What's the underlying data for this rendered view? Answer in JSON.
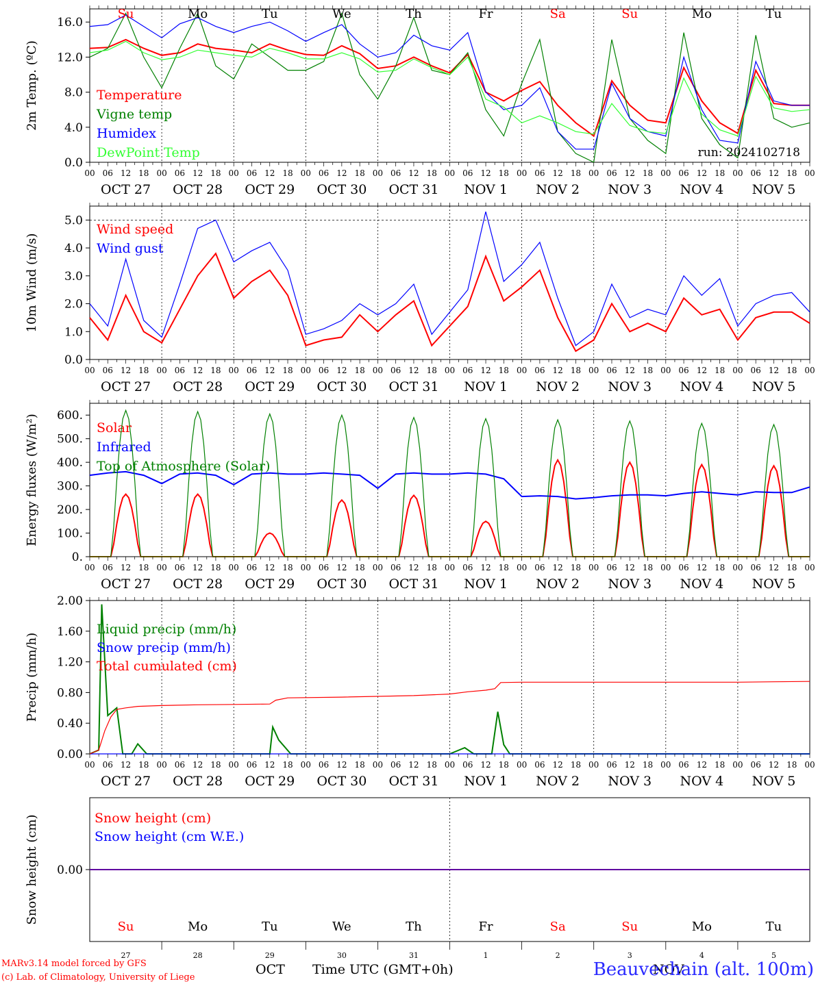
{
  "chart_data": [
    {
      "type": "line",
      "ylabel": "2m Temp. (ºC)",
      "ylim": [
        0,
        17.5
      ],
      "yticks": [
        "0.0",
        "4.0",
        "8.0",
        "12.0",
        "16.0"
      ],
      "run_label": "run: 2024102718",
      "day_labels": [
        "Su",
        "Mo",
        "Tu",
        "We",
        "Th",
        "Fr",
        "Sa",
        "Su",
        "Mo",
        "Tu"
      ],
      "x_hours": [
        0,
        6,
        12,
        18,
        24,
        30,
        36,
        42,
        48,
        54,
        60,
        66,
        72,
        78,
        84,
        90,
        96,
        102,
        108,
        114,
        120,
        126,
        132,
        138,
        144,
        150,
        156,
        162,
        168,
        174,
        180,
        186,
        192,
        198,
        204,
        210,
        216,
        222,
        228,
        234,
        240
      ],
      "series": [
        {
          "name": "Temperature",
          "color": "#ff0000",
          "values": [
            13.0,
            13.1,
            14.0,
            13.0,
            12.2,
            12.5,
            13.5,
            13.0,
            12.8,
            12.5,
            13.5,
            12.8,
            12.3,
            12.2,
            13.3,
            12.4,
            10.7,
            11.0,
            12.0,
            11.0,
            10.2,
            12.3,
            8.0,
            7.0,
            8.2,
            9.2,
            6.5,
            4.5,
            3.0,
            9.3,
            6.5,
            4.8,
            4.5,
            10.8,
            7.0,
            4.5,
            3.3,
            10.5,
            6.7,
            6.5,
            6.5
          ]
        },
        {
          "name": "Vigne temp",
          "color": "#008000",
          "values": [
            12.0,
            13.0,
            17.0,
            12.0,
            8.5,
            13.0,
            17.0,
            11.0,
            9.5,
            13.5,
            12.0,
            10.5,
            10.5,
            11.5,
            17.0,
            10.0,
            7.2,
            11.0,
            16.5,
            10.5,
            10.0,
            12.5,
            6.0,
            3.0,
            9.0,
            14.0,
            3.5,
            1.0,
            0.0,
            14.0,
            5.0,
            2.5,
            1.0,
            14.8,
            5.0,
            2.0,
            0.5,
            14.5,
            5.0,
            4.0,
            4.5
          ]
        },
        {
          "name": "Humidex",
          "color": "#0000ff",
          "values": [
            15.5,
            15.7,
            16.8,
            15.5,
            14.2,
            15.8,
            16.5,
            15.5,
            14.8,
            15.5,
            16.0,
            15.0,
            13.8,
            14.8,
            15.7,
            13.5,
            12.0,
            12.5,
            14.5,
            13.3,
            12.8,
            14.8,
            8.0,
            6.0,
            6.5,
            8.5,
            3.5,
            1.5,
            1.5,
            9.0,
            5.0,
            3.5,
            3.0,
            12.0,
            6.0,
            2.5,
            2.2,
            11.5,
            7.0,
            6.5,
            6.5
          ]
        },
        {
          "name": "DewPoint Temp",
          "color": "#33ff33",
          "values": [
            12.5,
            12.8,
            13.8,
            12.5,
            11.7,
            12.0,
            12.8,
            12.5,
            12.2,
            12.0,
            13.0,
            12.5,
            11.8,
            11.8,
            12.5,
            11.8,
            10.3,
            10.5,
            11.8,
            10.8,
            10.0,
            12.0,
            7.2,
            6.3,
            4.5,
            5.3,
            4.5,
            3.5,
            3.2,
            6.7,
            4.2,
            3.5,
            3.3,
            9.6,
            5.5,
            3.7,
            3.0,
            9.8,
            6.2,
            5.8,
            6.0
          ]
        }
      ]
    },
    {
      "type": "line",
      "ylabel": "10m Wind (m/s)",
      "ylim": [
        0,
        5.5
      ],
      "yticks": [
        "0.0",
        "1.0",
        "2.0",
        "3.0",
        "4.0",
        "5.0"
      ],
      "x_hours": [
        0,
        6,
        12,
        18,
        24,
        30,
        36,
        42,
        48,
        54,
        60,
        66,
        72,
        78,
        84,
        90,
        96,
        102,
        108,
        114,
        120,
        126,
        132,
        138,
        144,
        150,
        156,
        162,
        168,
        174,
        180,
        186,
        192,
        198,
        204,
        210,
        216,
        222,
        228,
        234,
        240
      ],
      "series": [
        {
          "name": "Wind speed",
          "color": "#ff0000",
          "values": [
            1.5,
            0.7,
            2.3,
            1.0,
            0.6,
            1.8,
            3.0,
            3.8,
            2.2,
            2.8,
            3.2,
            2.3,
            0.5,
            0.7,
            0.8,
            1.6,
            1.0,
            1.6,
            2.1,
            0.5,
            1.2,
            1.9,
            3.7,
            2.1,
            2.6,
            3.2,
            1.5,
            0.3,
            0.7,
            2.0,
            1.0,
            1.3,
            1.0,
            2.2,
            1.6,
            1.8,
            0.7,
            1.5,
            1.7,
            1.7,
            1.3
          ]
        },
        {
          "name": "Wind gust",
          "color": "#0000ff",
          "values": [
            2.0,
            1.2,
            3.6,
            1.4,
            0.8,
            2.7,
            4.7,
            5.0,
            3.5,
            3.9,
            4.2,
            3.2,
            0.9,
            1.1,
            1.4,
            2.0,
            1.6,
            2.0,
            2.7,
            0.9,
            1.7,
            2.5,
            5.3,
            2.8,
            3.4,
            4.2,
            2.2,
            0.5,
            1.0,
            2.7,
            1.5,
            1.8,
            1.6,
            3.0,
            2.3,
            2.9,
            1.2,
            2.0,
            2.3,
            2.4,
            1.7
          ]
        }
      ]
    },
    {
      "type": "line",
      "ylabel": "Energy fluxes (W/m²)",
      "ylim": [
        0,
        650
      ],
      "yticks": [
        "0.",
        "100.",
        "200.",
        "300.",
        "400.",
        "500.",
        "600."
      ],
      "x_hours": [
        0,
        6,
        12,
        18,
        24,
        30,
        36,
        42,
        48,
        54,
        60,
        66,
        72,
        78,
        84,
        90,
        96,
        102,
        108,
        114,
        120,
        126,
        132,
        138,
        144,
        150,
        156,
        162,
        168,
        174,
        180,
        186,
        192,
        198,
        204,
        210,
        216,
        222,
        228,
        234,
        240
      ],
      "series": [
        {
          "name": "Solar",
          "color": "#ff0000",
          "peaks": [
            265,
            265,
            100,
            240,
            260,
            150,
            410,
            400,
            390,
            385
          ]
        },
        {
          "name": "Infrared",
          "color": "#0000ff",
          "values": [
            345,
            355,
            360,
            345,
            310,
            350,
            355,
            345,
            305,
            350,
            355,
            350,
            350,
            355,
            350,
            345,
            290,
            350,
            355,
            350,
            350,
            355,
            350,
            330,
            255,
            258,
            255,
            245,
            250,
            258,
            262,
            262,
            258,
            268,
            275,
            268,
            262,
            275,
            272,
            272,
            295
          ]
        },
        {
          "name": "Top of Atmosphere (Solar)",
          "color": "#008000",
          "peaks": [
            620,
            615,
            605,
            600,
            590,
            585,
            580,
            575,
            565,
            560
          ]
        }
      ]
    },
    {
      "type": "line",
      "ylabel": "Precip (mm/h)",
      "ylim": [
        0,
        2.0
      ],
      "yticks": [
        "0.00",
        "0.40",
        "0.80",
        "1.20",
        "1.60",
        "2.00"
      ],
      "series": [
        {
          "name": "Liquid precip (mm/h)",
          "color": "#008000",
          "points": [
            [
              0,
              0.0
            ],
            [
              3,
              0.05
            ],
            [
              4,
              1.95
            ],
            [
              6,
              0.5
            ],
            [
              9,
              0.6
            ],
            [
              11,
              0.0
            ],
            [
              14,
              0.0
            ],
            [
              16,
              0.13
            ],
            [
              19,
              0.0
            ],
            [
              24,
              0.0
            ],
            [
              60,
              0.0
            ],
            [
              61,
              0.35
            ],
            [
              63,
              0.18
            ],
            [
              67,
              0.0
            ],
            [
              120,
              0.0
            ],
            [
              125,
              0.08
            ],
            [
              128,
              0.0
            ],
            [
              134,
              0.0
            ],
            [
              136,
              0.55
            ],
            [
              138,
              0.12
            ],
            [
              140,
              0.0
            ],
            [
              240,
              0.0
            ]
          ]
        },
        {
          "name": "Snow precip (mm/h)",
          "color": "#0000ff",
          "points": [
            [
              0,
              0.0
            ],
            [
              240,
              0.0
            ]
          ]
        },
        {
          "name": "Total cumulated (cm)",
          "color": "#ff0000",
          "points": [
            [
              0,
              0.0
            ],
            [
              3,
              0.05
            ],
            [
              5,
              0.3
            ],
            [
              7,
              0.48
            ],
            [
              9,
              0.58
            ],
            [
              12,
              0.6
            ],
            [
              16,
              0.62
            ],
            [
              24,
              0.63
            ],
            [
              36,
              0.64
            ],
            [
              48,
              0.645
            ],
            [
              60,
              0.65
            ],
            [
              62,
              0.7
            ],
            [
              66,
              0.73
            ],
            [
              84,
              0.74
            ],
            [
              108,
              0.76
            ],
            [
              120,
              0.78
            ],
            [
              126,
              0.81
            ],
            [
              132,
              0.83
            ],
            [
              135,
              0.85
            ],
            [
              137,
              0.93
            ],
            [
              144,
              0.935
            ],
            [
              216,
              0.935
            ],
            [
              228,
              0.94
            ],
            [
              240,
              0.945
            ]
          ]
        }
      ]
    },
    {
      "type": "line",
      "ylabel": "Snow height (cm)",
      "ylim": [
        -1,
        1
      ],
      "yticks": [
        "0.00"
      ],
      "series": [
        {
          "name": "Snow height (cm)",
          "color": "#ff0000",
          "points": [
            [
              0,
              0
            ],
            [
              240,
              0
            ]
          ]
        },
        {
          "name": "Snow height (cm W.E.)",
          "color": "#0000ff",
          "points": [
            [
              0,
              0
            ],
            [
              240,
              0
            ]
          ]
        }
      ],
      "day_labels": [
        "Su",
        "Mo",
        "Tu",
        "We",
        "Th",
        "Fr",
        "Sa",
        "Su",
        "Mo",
        "Tu"
      ],
      "day_numbers": [
        "27",
        "28",
        "29",
        "30",
        "31",
        "1",
        "2",
        "3",
        "4",
        "5"
      ]
    }
  ],
  "axis": {
    "hour_ticks": [
      "00",
      "06",
      "12",
      "18"
    ],
    "end_tick": "00",
    "date_labels": [
      "OCT 27",
      "OCT 28",
      "OCT 29",
      "OCT 30",
      "OCT 31",
      "NOV  1",
      "NOV  2",
      "NOV  3",
      "NOV  4",
      "NOV  5"
    ],
    "weekend_color": "#ff0000",
    "weekend_indices": [
      0,
      6,
      7
    ]
  },
  "footer": {
    "model_line": "MARv3.14 model forced by GFS",
    "lab_line": "(c) Lab. of Climatology, University of Liege",
    "time_label": "Time UTC (GMT+0h)",
    "month_oct": "OCT",
    "month_nov": "NOV",
    "station": "Beauvechain (alt. 100m)"
  }
}
